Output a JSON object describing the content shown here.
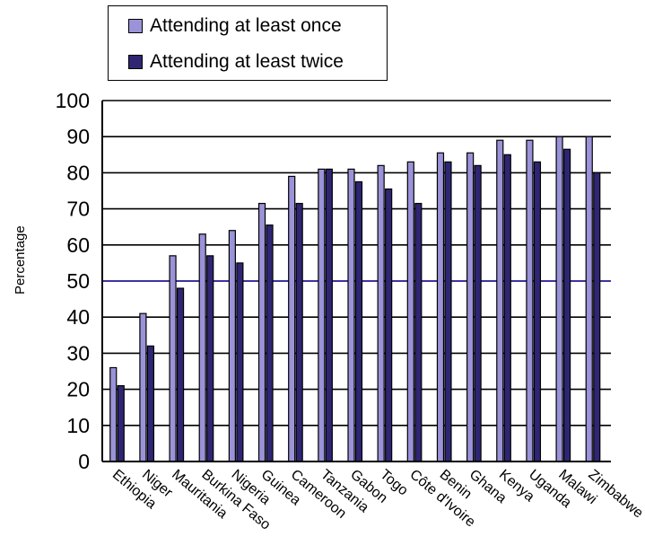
{
  "chart_data": {
    "type": "bar",
    "title": "",
    "xlabel": "",
    "ylabel": "Percentage",
    "ylim": [
      0,
      100
    ],
    "yticks": [
      0,
      10,
      20,
      30,
      40,
      50,
      60,
      70,
      80,
      90,
      100
    ],
    "grid": true,
    "legend_position": "top-left",
    "reference_line": 50,
    "categories": [
      "Ethiopia",
      "Niger",
      "Mauritania",
      "Burkina Faso",
      "Nigeria",
      "Guinea",
      "Cameroon",
      "Tanzania",
      "Gabon",
      "Togo",
      "Côte d'Ivoire",
      "Benin",
      "Ghana",
      "Kenya",
      "Uganda",
      "Malawi",
      "Zimbabwe"
    ],
    "series": [
      {
        "name": "Attending at least once",
        "color": "#9a93d8",
        "values": [
          26,
          41,
          57,
          63,
          64,
          71.5,
          79,
          81,
          81,
          82,
          83,
          85.5,
          85.5,
          89,
          89,
          90,
          90
        ]
      },
      {
        "name": "Attending at least twice",
        "color": "#2e2673",
        "values": [
          21,
          32,
          48,
          57,
          55,
          65.5,
          71.5,
          81,
          77.5,
          75.5,
          71.5,
          83,
          82,
          85,
          83,
          86.5,
          80
        ]
      }
    ]
  }
}
